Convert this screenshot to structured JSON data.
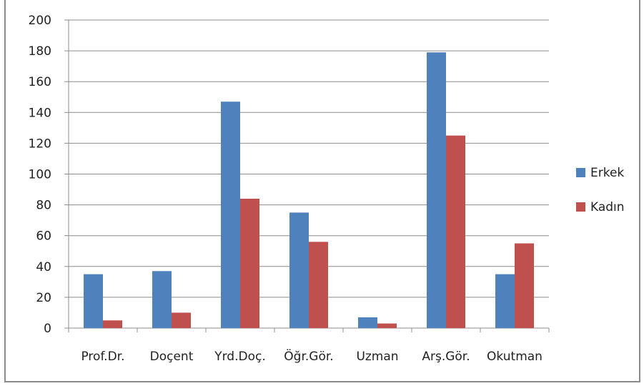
{
  "chart_data": {
    "type": "bar",
    "categories": [
      "Prof.Dr.",
      "Doçent",
      "Yrd.Doç.",
      "Öğr.Gör.",
      "Uzman",
      "Arş.Gör.",
      "Okutman"
    ],
    "series": [
      {
        "name": "Erkek",
        "color": "#4f81bd",
        "values": [
          35,
          37,
          147,
          75,
          7,
          179,
          35
        ]
      },
      {
        "name": "Kadın",
        "color": "#c0504d",
        "values": [
          5,
          10,
          84,
          56,
          3,
          125,
          55
        ]
      }
    ],
    "title": "",
    "xlabel": "",
    "ylabel": "",
    "ylim": [
      0,
      200
    ],
    "yticks": [
      0,
      20,
      40,
      60,
      80,
      100,
      120,
      140,
      160,
      180,
      200
    ],
    "grid": true,
    "legend_position": "right"
  }
}
